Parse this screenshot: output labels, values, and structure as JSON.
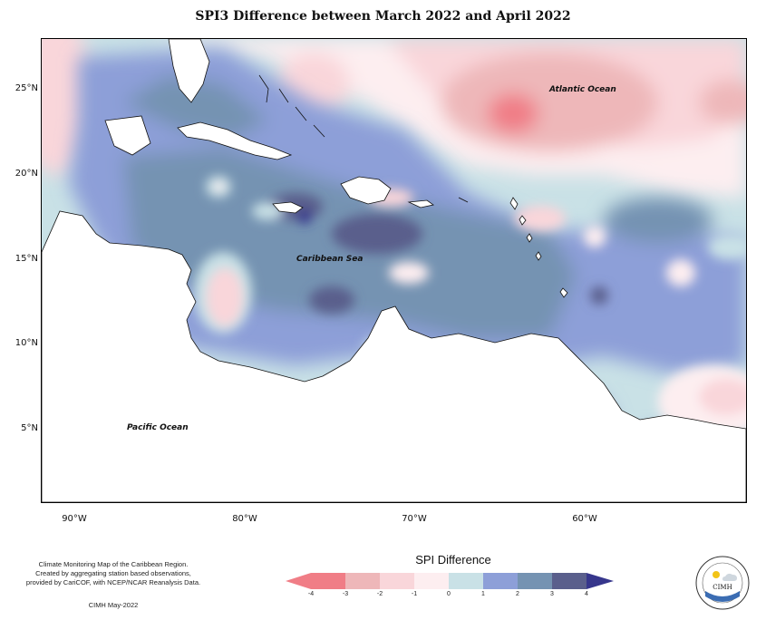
{
  "title": "SPI3 Difference between March 2022 and April 2022",
  "axes": {
    "lat_labels": [
      "25°N",
      "20°N",
      "15°N",
      "10°N",
      "5°N"
    ],
    "lon_labels": [
      "90°W",
      "80°W",
      "70°W",
      "60°W"
    ]
  },
  "ocean_labels": {
    "atlantic": "Atlantic Ocean",
    "caribbean": "Caribbean Sea",
    "pacific": "Pacific Ocean"
  },
  "legend": {
    "title": "SPI Difference",
    "ticks": [
      "-4",
      "-3",
      "-2",
      "-1",
      "0",
      "1",
      "2",
      "3",
      "4"
    ],
    "colors": [
      "#f07d86",
      "#eeb7b9",
      "#f9d6da",
      "#fdeef0",
      "#c9e1e6",
      "#8d9fd8",
      "#7593b2",
      "#5a5f8c",
      "#36368c"
    ]
  },
  "footer": {
    "line1": "Climate Monitoring Map of the Caribbean Region.",
    "line2": "Created by aggregating station based observations,",
    "line3": "provided by CariCOF, with NCEP/NCAR Reanalysis Data.",
    "credit": "CIMH May-2022"
  },
  "logo": {
    "text": "CIMH"
  }
}
